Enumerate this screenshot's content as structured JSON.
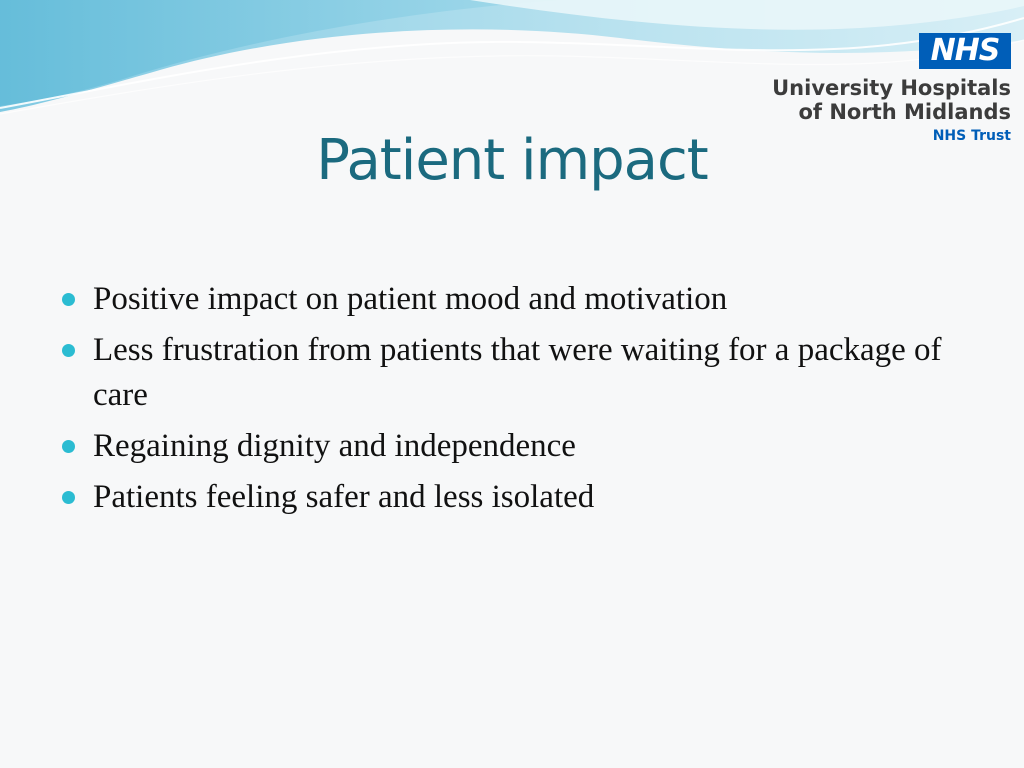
{
  "slide": {
    "title": "Patient impact",
    "bullets": [
      "Positive impact on patient mood and motivation",
      "Less frustration from patients that were waiting for a package of care",
      "Regaining dignity and independence",
      "Patients feeling safer and less isolated"
    ]
  },
  "logo": {
    "mark": "NHS",
    "line1": "University Hospitals",
    "line2": "of North Midlands",
    "line3": "NHS Trust"
  },
  "colors": {
    "title": "#1b6a7f",
    "bullet_dot": "#2bbcd2",
    "nhs_blue": "#005eb8",
    "wave_light": "#a8dcec",
    "wave_dark": "#4fb6d3"
  }
}
